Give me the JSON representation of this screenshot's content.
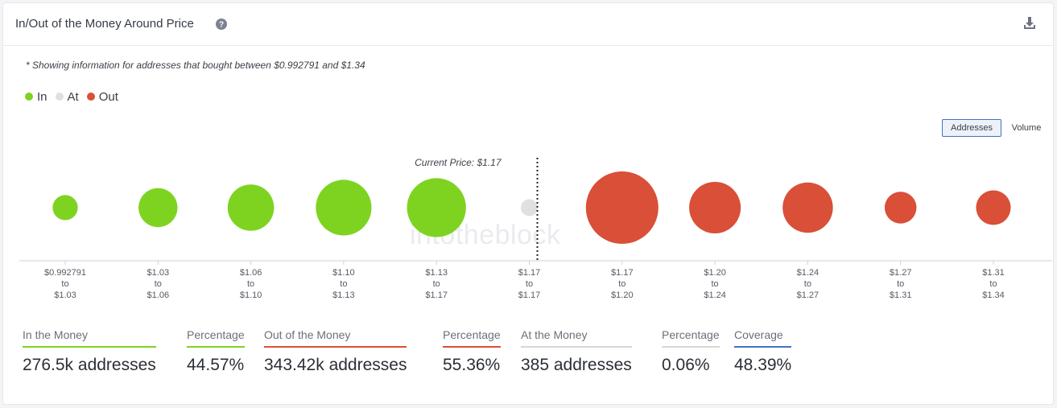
{
  "header": {
    "title": "In/Out of the Money Around Price",
    "help_icon": "question-circle-icon",
    "download_icon": "download-icon"
  },
  "note": "* Showing information for addresses that bought between $0.992791 and $1.34",
  "legend": [
    {
      "label": "In",
      "color": "#7ed321"
    },
    {
      "label": "At",
      "color": "#e0e0e0"
    },
    {
      "label": "Out",
      "color": "#d94f38"
    }
  ],
  "toggles": {
    "addresses": "Addresses",
    "volume": "Volume"
  },
  "watermark": "intotheblock",
  "chart_data": {
    "type": "bubble",
    "current_price_label": "Current Price: $1.17",
    "buckets": [
      {
        "from": "$0.992791",
        "to_word": "to",
        "to": "$1.03",
        "status": "in",
        "size": 1.0
      },
      {
        "from": "$1.03",
        "to_word": "to",
        "to": "$1.06",
        "status": "in",
        "size": 2.4
      },
      {
        "from": "$1.06",
        "to_word": "to",
        "to": "$1.10",
        "status": "in",
        "size": 3.4
      },
      {
        "from": "$1.10",
        "to_word": "to",
        "to": "$1.13",
        "status": "in",
        "size": 4.9
      },
      {
        "from": "$1.13",
        "to_word": "to",
        "to": "$1.17",
        "status": "in",
        "size": 5.5
      },
      {
        "from": "$1.17",
        "to_word": "to",
        "to": "$1.17",
        "status": "at",
        "size": 0.45
      },
      {
        "from": "$1.17",
        "to_word": "to",
        "to": "$1.20",
        "status": "out",
        "size": 8.3
      },
      {
        "from": "$1.20",
        "to_word": "to",
        "to": "$1.24",
        "status": "out",
        "size": 4.2
      },
      {
        "from": "$1.24",
        "to_word": "to",
        "to": "$1.27",
        "status": "out",
        "size": 4.0
      },
      {
        "from": "$1.27",
        "to_word": "to",
        "to": "$1.31",
        "status": "out",
        "size": 1.6
      },
      {
        "from": "$1.31",
        "to_word": "to",
        "to": "$1.34",
        "status": "out",
        "size": 1.9
      }
    ]
  },
  "stats": [
    {
      "label": "In the Money",
      "value": "276.5k addresses",
      "color": "#7ed321"
    },
    {
      "label": "Percentage",
      "value": "44.57%",
      "color": "#7ed321"
    },
    {
      "label": "Out of the Money",
      "value": "343.42k addresses",
      "color": "#d94f38"
    },
    {
      "label": "Percentage",
      "value": "55.36%",
      "color": "#d94f38"
    },
    {
      "label": "At the Money",
      "value": "385 addresses",
      "color": "#d6d6d6"
    },
    {
      "label": "Percentage",
      "value": "0.06%",
      "color": "#d6d6d6"
    },
    {
      "label": "Coverage",
      "value": "48.39%",
      "color": "#4472c4"
    }
  ]
}
